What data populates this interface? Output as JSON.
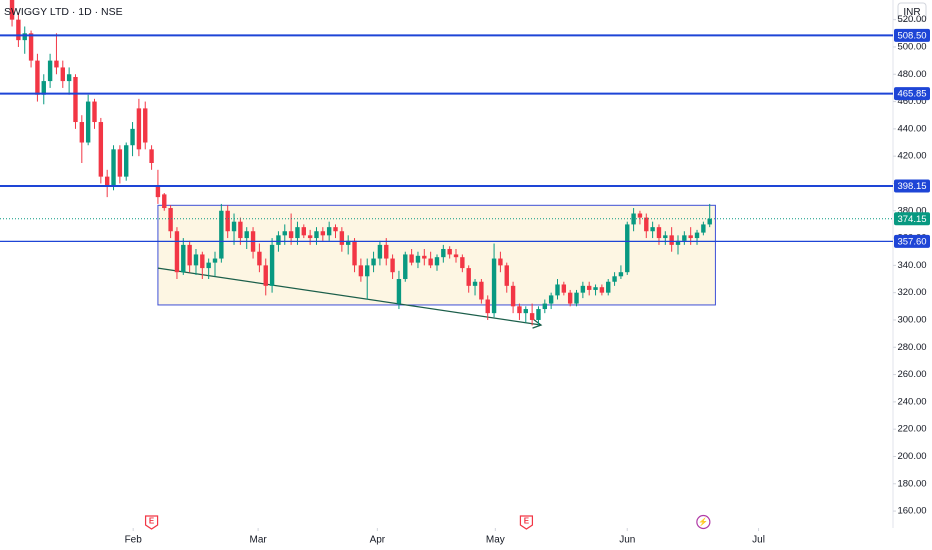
{
  "chart_data": {
    "type": "candlestick",
    "title": "SWIGGY LTD · 1D · NSE",
    "currency": "INR",
    "up_color": "#089981",
    "down_color": "#f23645",
    "level_color": "#1e45d6",
    "open": [
      535,
      520,
      505,
      510,
      490,
      465,
      475,
      490,
      485,
      475,
      478,
      445,
      430,
      460,
      445,
      405,
      398,
      425,
      405,
      428,
      455,
      455,
      425,
      398,
      392,
      382,
      365,
      335,
      355,
      340,
      348,
      338,
      342,
      345,
      380,
      365,
      372,
      360,
      365,
      350,
      340,
      325,
      355,
      362,
      365,
      360,
      368,
      362,
      360,
      365,
      362,
      368,
      365,
      355,
      358,
      340,
      332,
      340,
      345,
      355,
      345,
      312,
      330,
      348,
      342,
      347,
      345,
      340,
      346,
      352,
      348,
      346,
      338,
      325,
      328,
      315,
      305,
      345,
      340,
      325,
      310,
      305,
      305,
      300,
      308,
      312,
      318,
      326,
      320,
      312,
      320,
      325,
      322,
      324,
      320,
      328,
      332,
      335,
      370,
      378,
      375,
      365,
      368,
      360,
      362,
      355,
      358,
      362,
      360,
      364,
      370
    ],
    "high": [
      540,
      525,
      515,
      512,
      495,
      480,
      495,
      510,
      490,
      485,
      480,
      450,
      465,
      462,
      448,
      410,
      428,
      428,
      430,
      445,
      462,
      460,
      428,
      410,
      393,
      384,
      368,
      360,
      358,
      352,
      350,
      345,
      350,
      385,
      384,
      378,
      375,
      368,
      368,
      356,
      345,
      360,
      365,
      370,
      378,
      372,
      370,
      366,
      368,
      368,
      372,
      370,
      368,
      362,
      360,
      345,
      345,
      350,
      358,
      360,
      348,
      336,
      350,
      352,
      350,
      352,
      350,
      348,
      355,
      354,
      352,
      348,
      340,
      330,
      330,
      318,
      356,
      350,
      342,
      328,
      312,
      310,
      312,
      310,
      315,
      320,
      330,
      328,
      322,
      322,
      328,
      328,
      326,
      326,
      330,
      335,
      340,
      372,
      382,
      380,
      378,
      372,
      370,
      365,
      368,
      362,
      365,
      368,
      366,
      372,
      385
    ],
    "low": [
      515,
      500,
      495,
      485,
      460,
      458,
      470,
      480,
      470,
      465,
      440,
      415,
      428,
      440,
      400,
      390,
      395,
      400,
      402,
      420,
      420,
      425,
      410,
      385,
      380,
      360,
      330,
      333,
      335,
      333,
      330,
      330,
      332,
      342,
      360,
      355,
      355,
      352,
      345,
      335,
      318,
      320,
      350,
      355,
      355,
      355,
      360,
      355,
      355,
      358,
      358,
      360,
      350,
      348,
      335,
      328,
      315,
      335,
      340,
      340,
      330,
      308,
      328,
      340,
      338,
      340,
      338,
      336,
      342,
      345,
      342,
      335,
      320,
      318,
      312,
      300,
      302,
      335,
      320,
      305,
      300,
      298,
      296,
      296,
      305,
      308,
      315,
      318,
      310,
      310,
      316,
      318,
      318,
      318,
      318,
      325,
      330,
      333,
      365,
      370,
      360,
      360,
      355,
      355,
      350,
      348,
      355,
      355,
      355,
      362,
      368
    ],
    "close": [
      520,
      505,
      510,
      490,
      465,
      475,
      490,
      485,
      475,
      480,
      445,
      430,
      460,
      445,
      405,
      398,
      425,
      405,
      428,
      440,
      425,
      430,
      415,
      390,
      382,
      365,
      335,
      355,
      340,
      348,
      338,
      342,
      345,
      380,
      365,
      372,
      360,
      365,
      350,
      340,
      325,
      355,
      362,
      365,
      360,
      368,
      362,
      360,
      365,
      362,
      368,
      365,
      355,
      358,
      340,
      332,
      340,
      345,
      355,
      345,
      335,
      330,
      348,
      342,
      347,
      345,
      340,
      346,
      352,
      348,
      346,
      338,
      325,
      328,
      315,
      305,
      345,
      340,
      325,
      310,
      305,
      308,
      300,
      308,
      312,
      318,
      326,
      320,
      312,
      320,
      325,
      322,
      324,
      320,
      328,
      332,
      335,
      370,
      378,
      375,
      365,
      368,
      360,
      362,
      355,
      358,
      362,
      360,
      364,
      370,
      374.15
    ],
    "xlim": [
      -1.9,
      138.9
    ],
    "ylim": [
      147.6,
      534.4
    ],
    "xticks": [
      {
        "value": 19.1,
        "label": "Feb"
      },
      {
        "value": 38.8,
        "label": "Mar"
      },
      {
        "value": 57.6,
        "label": "Apr"
      },
      {
        "value": 76.2,
        "label": "May"
      },
      {
        "value": 97,
        "label": "Jun"
      },
      {
        "value": 117.7,
        "label": "Jul"
      }
    ],
    "yticks": [
      {
        "value": 160,
        "label": "160.00"
      },
      {
        "value": 180,
        "label": "180.00"
      },
      {
        "value": 200,
        "label": "200.00"
      },
      {
        "value": 220,
        "label": "220.00"
      },
      {
        "value": 240,
        "label": "240.00"
      },
      {
        "value": 260,
        "label": "260.00"
      },
      {
        "value": 280,
        "label": "280.00"
      },
      {
        "value": 300,
        "label": "300.00"
      },
      {
        "value": 320,
        "label": "320.00"
      },
      {
        "value": 340,
        "label": "340.00"
      },
      {
        "value": 360,
        "label": "360.00"
      },
      {
        "value": 380,
        "label": "380.00"
      },
      {
        "value": 400,
        "label": "400.00"
      },
      {
        "value": 420,
        "label": "420.00"
      },
      {
        "value": 440,
        "label": "440.00"
      },
      {
        "value": 460,
        "label": "460.00"
      },
      {
        "value": 480,
        "label": "480.00"
      },
      {
        "value": 500,
        "label": "500.00"
      },
      {
        "value": 520,
        "label": "520.00"
      }
    ],
    "levels": [
      {
        "value": 508.5,
        "label": "508.50"
      },
      {
        "value": 465.85,
        "label": "465.85"
      },
      {
        "value": 398.15,
        "label": "398.15"
      },
      {
        "value": 357.6,
        "label": "357.60"
      }
    ],
    "last_price": {
      "value": 374.15,
      "label": "374.15"
    },
    "box": {
      "x": [
        23,
        110.9
      ],
      "y": [
        311,
        384
      ]
    },
    "trendline": {
      "x": [
        23,
        83.4
      ],
      "y": [
        338,
        296.3
      ]
    },
    "events": [
      {
        "x": 22,
        "label": "E"
      },
      {
        "x": 81.1,
        "label": "E"
      },
      {
        "x": 109,
        "label": "⚡"
      }
    ]
  }
}
